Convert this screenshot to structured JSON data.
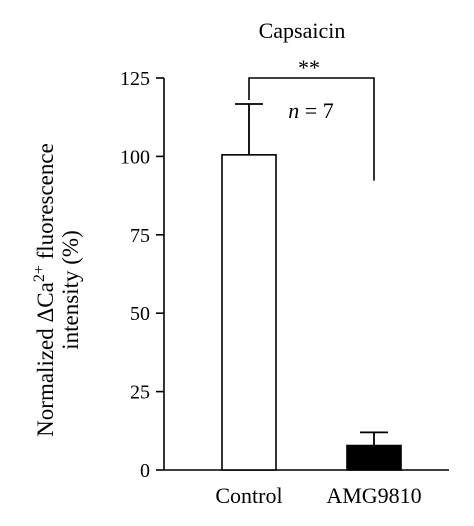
{
  "chart_data": {
    "type": "bar",
    "title": "Capsaicin",
    "ylabel": {
      "prefix": "Normalized ΔCa",
      "superscript": "2+",
      "suffix": " fluorescence",
      "line2": "intensity (%)"
    },
    "xlabel": "",
    "categories": [
      "Control",
      "AMG9810"
    ],
    "values": [
      100.5,
      7.8
    ],
    "errors": [
      16.2,
      4.2
    ],
    "bar_colors": [
      "#ffffff",
      "#000000"
    ],
    "ylim": [
      0,
      125
    ],
    "yticks": [
      "0",
      "25",
      "50",
      "75",
      "100",
      "125"
    ],
    "grid": false,
    "annotations": {
      "significance": "**",
      "n_italic": "n",
      "n_rest": " = 7"
    }
  }
}
